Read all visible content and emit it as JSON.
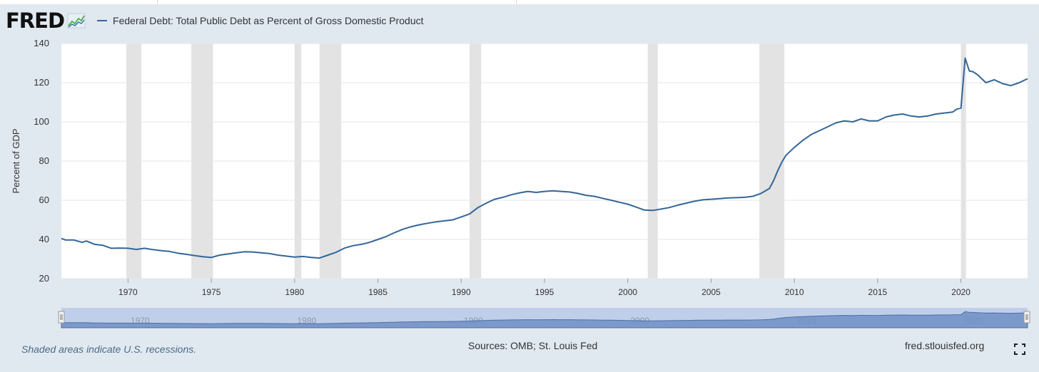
{
  "header": {
    "logo_text": "FRED",
    "legend_label": "Federal Debt: Total Public Debt as Percent of Gross Domestic Product",
    "series_color": "#336699"
  },
  "footer": {
    "recession_note": "Shaded areas indicate U.S. recessions.",
    "sources": "Sources: OMB; St. Louis Fed",
    "url": "fred.stlouisfed.org",
    "fullscreen_icon": "fullscreen-icon"
  },
  "chart_data": {
    "type": "line",
    "title": "",
    "ylabel": "Percent of GDP",
    "xlabel": "",
    "xlim": [
      1966.0,
      2024.0
    ],
    "ylim": [
      20,
      140
    ],
    "yticks": [
      "20",
      "40",
      "60",
      "80",
      "100",
      "120",
      "140"
    ],
    "xticks": [
      "1970",
      "1975",
      "1980",
      "1985",
      "1990",
      "1995",
      "2000",
      "2005",
      "2010",
      "2015",
      "2020"
    ],
    "navigator_ticks": [
      "1970",
      "1980",
      "1990",
      "2000",
      "2010",
      "2020"
    ],
    "grid": true,
    "recessions": [
      [
        1969.9,
        1970.8
      ],
      [
        1973.8,
        1975.1
      ],
      [
        1980.0,
        1980.4
      ],
      [
        1981.5,
        1982.8
      ],
      [
        1990.5,
        1991.2
      ],
      [
        2001.2,
        2001.8
      ],
      [
        2007.9,
        2009.4
      ],
      [
        2020.0,
        2020.3
      ]
    ],
    "series": [
      {
        "name": "Federal Debt: Total Public Debt as Percent of Gross Domestic Product",
        "color": "#336699",
        "x": [
          1966.0,
          1966.25,
          1966.75,
          1967.25,
          1967.5,
          1968.0,
          1968.5,
          1969.0,
          1969.5,
          1970.0,
          1970.5,
          1971.0,
          1971.5,
          1972.0,
          1972.5,
          1973.0,
          1973.5,
          1974.0,
          1974.5,
          1975.0,
          1975.5,
          1976.0,
          1976.5,
          1977.0,
          1977.5,
          1978.0,
          1978.5,
          1979.0,
          1979.5,
          1980.0,
          1980.5,
          1981.0,
          1981.5,
          1982.0,
          1982.5,
          1983.0,
          1983.5,
          1984.0,
          1984.5,
          1985.0,
          1985.5,
          1986.0,
          1986.5,
          1987.0,
          1987.5,
          1988.0,
          1988.5,
          1989.0,
          1989.5,
          1990.0,
          1990.5,
          1991.0,
          1991.5,
          1992.0,
          1992.5,
          1993.0,
          1993.5,
          1994.0,
          1994.5,
          1995.0,
          1995.5,
          1996.0,
          1996.5,
          1997.0,
          1997.5,
          1998.0,
          1998.5,
          1999.0,
          1999.5,
          2000.0,
          2000.5,
          2001.0,
          2001.5,
          2002.0,
          2002.5,
          2003.0,
          2003.5,
          2004.0,
          2004.5,
          2005.0,
          2005.5,
          2006.0,
          2006.5,
          2007.0,
          2007.5,
          2008.0,
          2008.5,
          2008.75,
          2009.0,
          2009.25,
          2009.5,
          2010.0,
          2010.5,
          2011.0,
          2011.5,
          2012.0,
          2012.5,
          2013.0,
          2013.5,
          2014.0,
          2014.5,
          2015.0,
          2015.5,
          2016.0,
          2016.5,
          2017.0,
          2017.5,
          2018.0,
          2018.5,
          2019.0,
          2019.5,
          2019.75,
          2020.0,
          2020.25,
          2020.5,
          2020.75,
          2021.0,
          2021.5,
          2022.0,
          2022.5,
          2023.0,
          2023.5,
          2024.0
        ],
        "values": [
          40.5,
          39.7,
          39.7,
          38.5,
          39.2,
          37.5,
          37.0,
          35.5,
          35.6,
          35.5,
          34.9,
          35.5,
          34.8,
          34.3,
          33.9,
          33.0,
          32.4,
          31.8,
          31.2,
          30.8,
          32.0,
          32.6,
          33.2,
          33.7,
          33.6,
          33.2,
          32.8,
          32.0,
          31.5,
          31.0,
          31.3,
          30.8,
          30.5,
          32.0,
          33.5,
          35.6,
          36.8,
          37.5,
          38.5,
          40.0,
          41.5,
          43.5,
          45.2,
          46.5,
          47.5,
          48.3,
          49.0,
          49.5,
          50.0,
          51.5,
          53.0,
          56.2,
          58.5,
          60.5,
          61.5,
          62.8,
          63.8,
          64.5,
          64.0,
          64.5,
          64.8,
          64.5,
          64.2,
          63.5,
          62.5,
          62.0,
          61.0,
          60.0,
          59.0,
          58.0,
          56.5,
          55.0,
          54.8,
          55.5,
          56.3,
          57.5,
          58.5,
          59.5,
          60.2,
          60.5,
          60.8,
          61.2,
          61.3,
          61.5,
          62.0,
          63.5,
          66.0,
          70.0,
          75.0,
          79.5,
          83.0,
          87.0,
          90.5,
          93.5,
          95.5,
          97.5,
          99.5,
          100.5,
          100.0,
          101.5,
          100.5,
          100.5,
          102.5,
          103.5,
          104.0,
          103.0,
          102.5,
          103.0,
          104.0,
          104.5,
          105.0,
          106.5,
          107.0,
          132.5,
          126.0,
          125.5,
          124.0,
          120.0,
          121.5,
          119.5,
          118.5,
          120.0,
          122.0
        ]
      }
    ]
  }
}
